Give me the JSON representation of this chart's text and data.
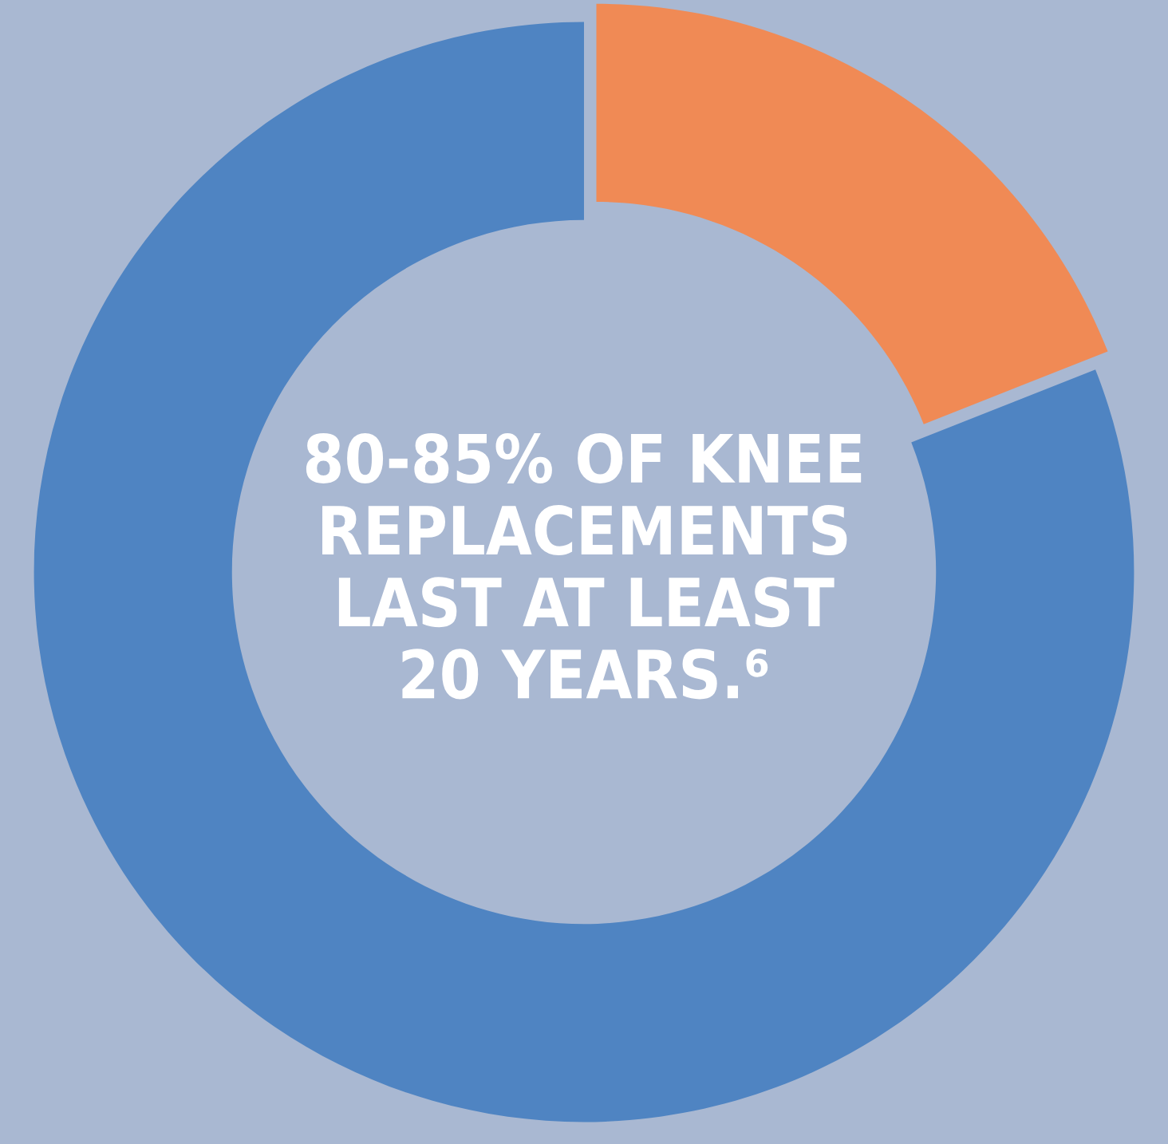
{
  "chart_data": {
    "type": "donut",
    "title": "80-85% OF KNEE\nREPLACEMENTS\nLAST AT LEAST\n20 YEARS.⁶",
    "categories": [
      null,
      null
    ],
    "values": [
      19,
      81
    ],
    "colors": [
      "#f08a55",
      "#4f84c2"
    ]
  }
}
